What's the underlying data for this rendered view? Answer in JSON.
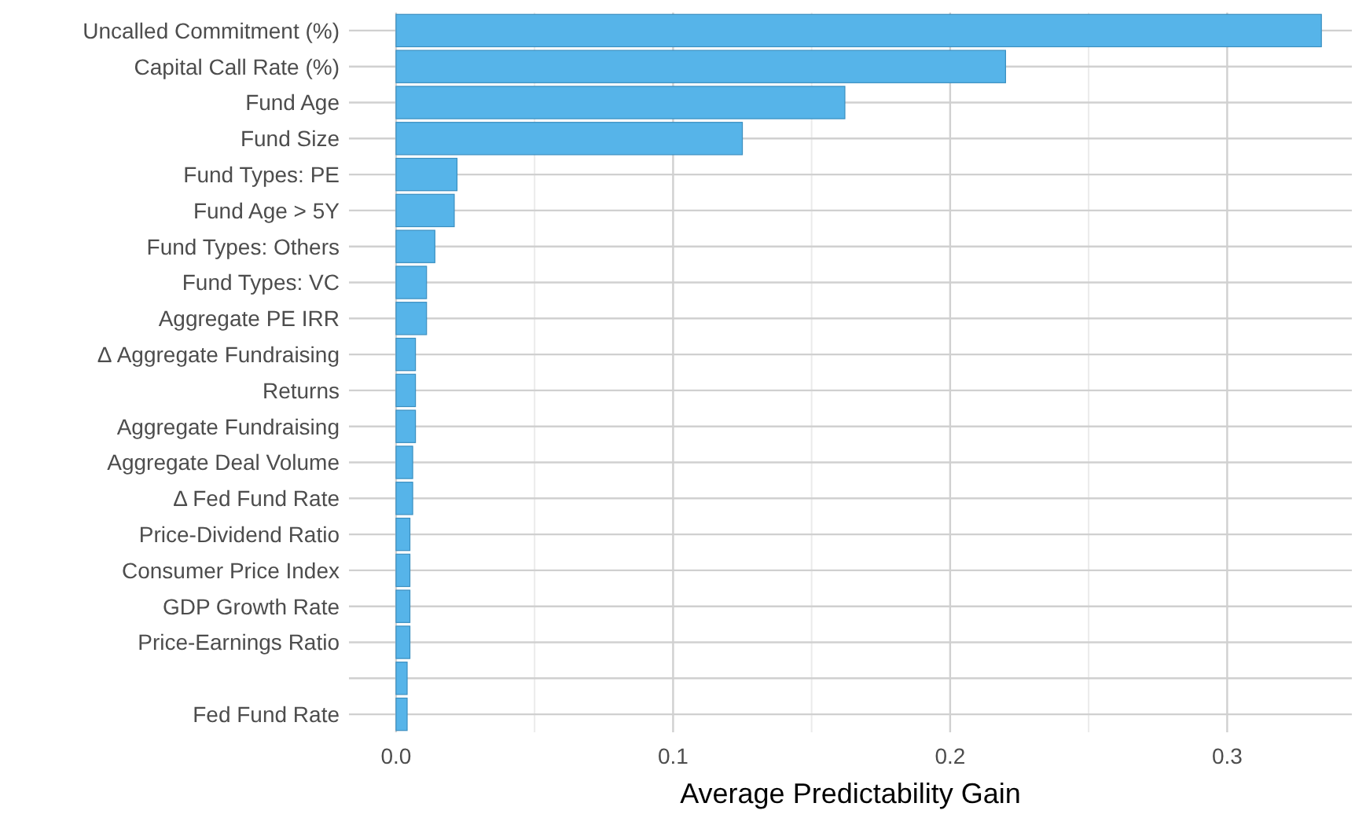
{
  "chart_data": {
    "type": "bar",
    "orientation": "horizontal",
    "xlabel": "Average Predictability Gain",
    "categories": [
      "Uncalled Commitment (%)",
      "Capital Call Rate (%)",
      "Fund Age",
      "Fund Size",
      "Fund Types: PE",
      "Fund Age > 5Y",
      "Fund Types: Others",
      "Fund Types: VC",
      "Aggregate PE IRR",
      "Δ Aggregate Fundraising",
      "Returns",
      "Aggregate Fundraising",
      "Aggregate Deal Volume",
      "Δ Fed Fund Rate",
      "Price-Dividend Ratio",
      "Consumer Price Index",
      "GDP Growth Rate",
      "Price-Earnings Ratio",
      null,
      "Fed Fund Rate"
    ],
    "values": [
      0.334,
      0.22,
      0.162,
      0.125,
      0.022,
      0.021,
      0.014,
      0.011,
      0.011,
      0.007,
      0.007,
      0.007,
      0.006,
      0.006,
      0.005,
      0.005,
      0.005,
      0.005,
      0.004,
      0.004
    ],
    "color": "#56b4e9",
    "xlim": [
      -0.017,
      0.345
    ],
    "xticks": [
      {
        "value": 0,
        "label": "0.0"
      },
      0.1,
      0.2,
      0.3
    ],
    "grid": true
  }
}
